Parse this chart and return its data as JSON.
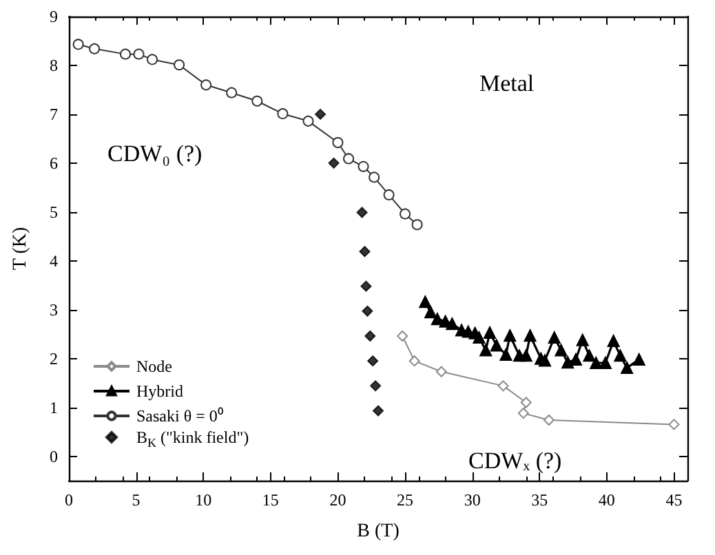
{
  "chart_data": {
    "type": "line",
    "xlabel": "B (T)",
    "ylabel": "T (K)",
    "xlim": [
      0,
      46
    ],
    "xticks": [
      0,
      5,
      10,
      15,
      20,
      25,
      30,
      35,
      40,
      45
    ],
    "ylim": [
      -0.5,
      9
    ],
    "yticks": [
      0,
      1,
      2,
      3,
      4,
      5,
      6,
      7,
      8,
      9
    ],
    "grid": false,
    "legend": "bottom left",
    "annotations": [
      "Metal",
      "CDW₀ (?)",
      "CDWₓ (?)"
    ],
    "series": [
      {
        "name": "Node",
        "marker": "diamond",
        "color": "#8a8a8a",
        "x": [
          24.8,
          25.7,
          27.7,
          32.3,
          34.0,
          33.8,
          35.7,
          45.0
        ],
        "values": [
          2.46,
          1.95,
          1.73,
          1.44,
          1.1,
          0.88,
          0.74,
          0.65
        ]
      },
      {
        "name": "Hybrid",
        "marker": "triangle",
        "color": "#000000",
        "x": [
          26.5,
          26.9,
          27.4,
          28.0,
          28.5,
          29.2,
          29.7,
          30.2,
          30.5,
          31.0,
          31.3,
          31.8,
          32.5,
          32.8,
          33.5,
          34.0,
          34.3,
          35.1,
          35.4,
          36.1,
          36.6,
          37.1,
          37.7,
          38.2,
          38.7,
          39.2,
          39.9,
          40.5,
          41.0,
          41.5,
          42.4
        ],
        "values": [
          3.16,
          2.95,
          2.81,
          2.76,
          2.71,
          2.58,
          2.55,
          2.52,
          2.43,
          2.17,
          2.53,
          2.27,
          2.08,
          2.47,
          2.06,
          2.06,
          2.47,
          2.0,
          1.96,
          2.43,
          2.17,
          1.92,
          1.98,
          2.38,
          2.06,
          1.91,
          1.91,
          2.36,
          2.06,
          1.81,
          1.98
        ]
      },
      {
        "name": "Sasaki θ = 0⁰",
        "marker": "circle",
        "color": "#333333",
        "x": [
          0.7,
          1.9,
          4.2,
          5.2,
          6.2,
          8.2,
          10.2,
          12.1,
          14.0,
          15.9,
          17.8,
          20.0,
          20.8,
          21.9,
          22.7,
          23.8,
          25.0,
          25.9
        ],
        "values": [
          8.43,
          8.34,
          8.23,
          8.23,
          8.12,
          8.01,
          7.6,
          7.44,
          7.27,
          7.01,
          6.86,
          6.42,
          6.09,
          5.93,
          5.71,
          5.35,
          4.96,
          4.74
        ]
      },
      {
        "name": "B$_{K}$ (\"kink field\")",
        "type": "scatter",
        "marker": "diamond",
        "color": "#000000",
        "x": [
          18.7,
          19.7,
          21.8,
          22.0,
          22.1,
          22.2,
          22.4,
          22.6,
          22.8,
          23.0
        ],
        "values": [
          7.0,
          6.0,
          4.99,
          4.19,
          3.48,
          2.97,
          2.46,
          1.95,
          1.44,
          0.93
        ]
      }
    ]
  }
}
